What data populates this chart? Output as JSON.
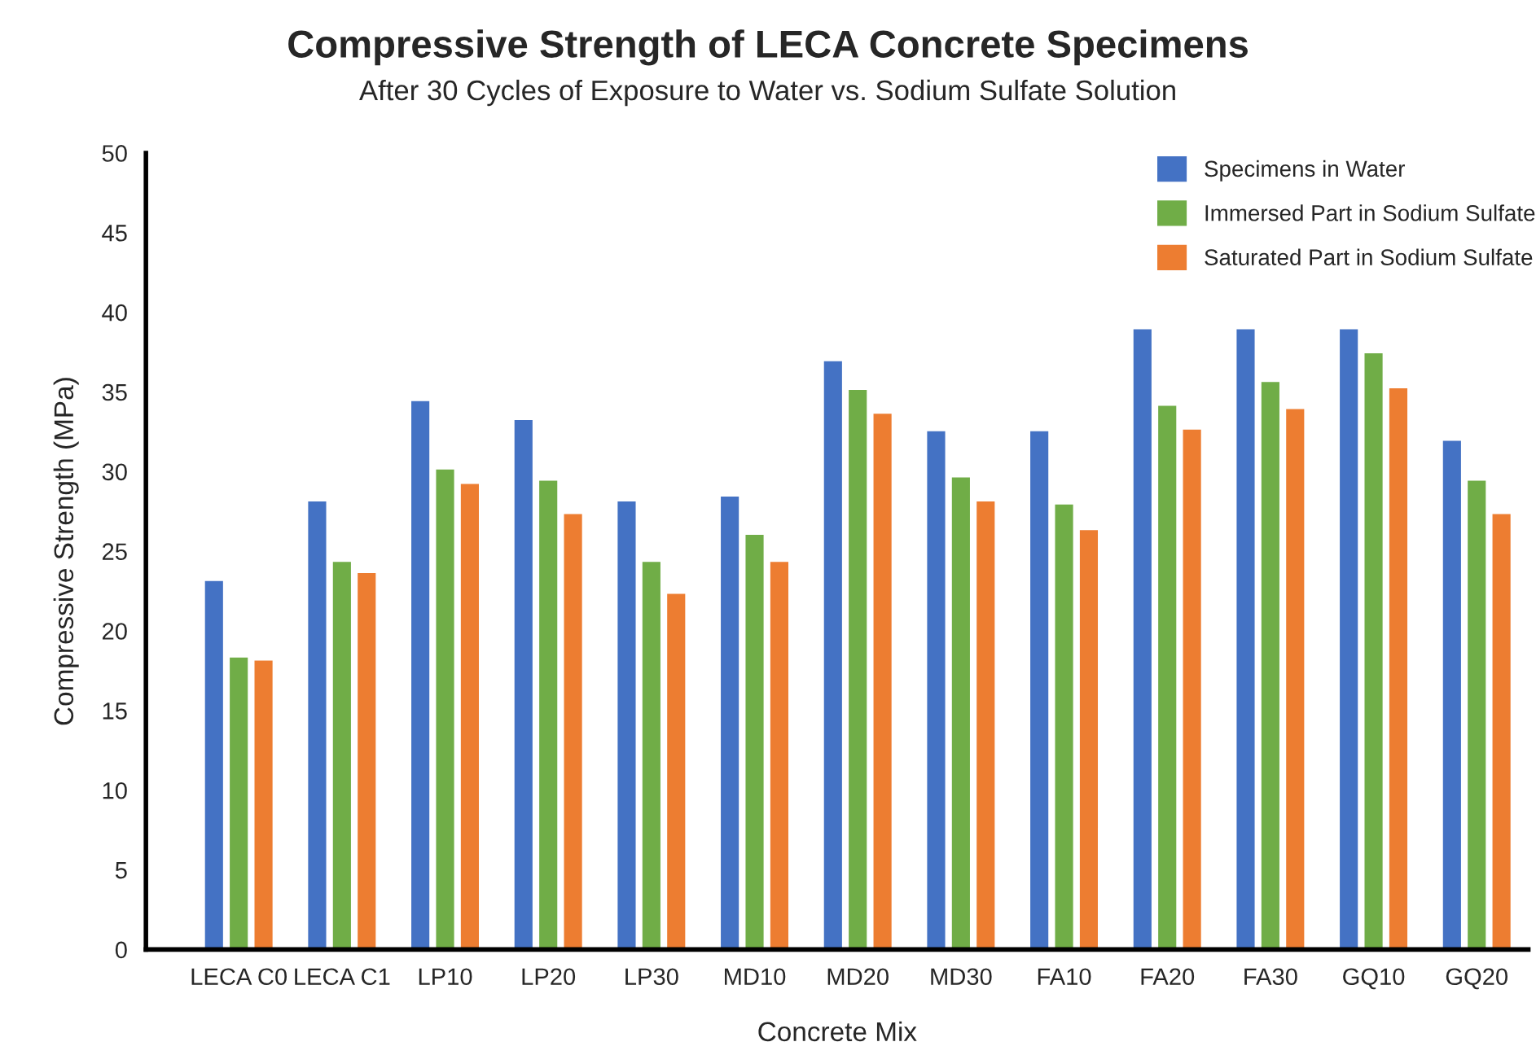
{
  "chart_data": {
    "type": "bar",
    "title": "Compressive Strength of LECA Concrete Specimens",
    "subtitle": "After 30 Cycles of Exposure to Water vs. Sodium Sulfate Solution",
    "xlabel": "Concrete Mix",
    "ylabel": "Compressive Strength (MPa)",
    "categories": [
      "LECA C0",
      "LECA C1",
      "LP10",
      "LP20",
      "LP30",
      "MD10",
      "MD20",
      "MD30",
      "FA10",
      "FA20",
      "FA30",
      "GQ10",
      "GQ20"
    ],
    "series": [
      {
        "name": "Specimens in Water",
        "color": "#4472c4",
        "values": [
          23.2,
          28.2,
          34.5,
          33.3,
          28.2,
          28.5,
          37.0,
          32.6,
          32.6,
          39.0,
          39.0,
          39.0,
          32.0
        ]
      },
      {
        "name": "Immersed Part in Sodium Sulfate",
        "color": "#70ad47",
        "values": [
          18.4,
          24.4,
          30.2,
          29.5,
          24.4,
          26.1,
          35.2,
          29.7,
          28.0,
          34.2,
          35.7,
          37.5,
          29.5
        ]
      },
      {
        "name": "Saturated Part in Sodium Sulfate",
        "color": "#ed7d31",
        "values": [
          18.2,
          23.7,
          29.3,
          27.4,
          22.4,
          24.4,
          33.7,
          28.2,
          26.4,
          32.7,
          34.0,
          35.3,
          27.4
        ]
      }
    ],
    "ylim": [
      0,
      50
    ],
    "yticks": [
      0,
      5,
      10,
      15,
      20,
      25,
      30,
      35,
      40,
      45,
      50
    ],
    "grid": false,
    "legend": "top right"
  }
}
